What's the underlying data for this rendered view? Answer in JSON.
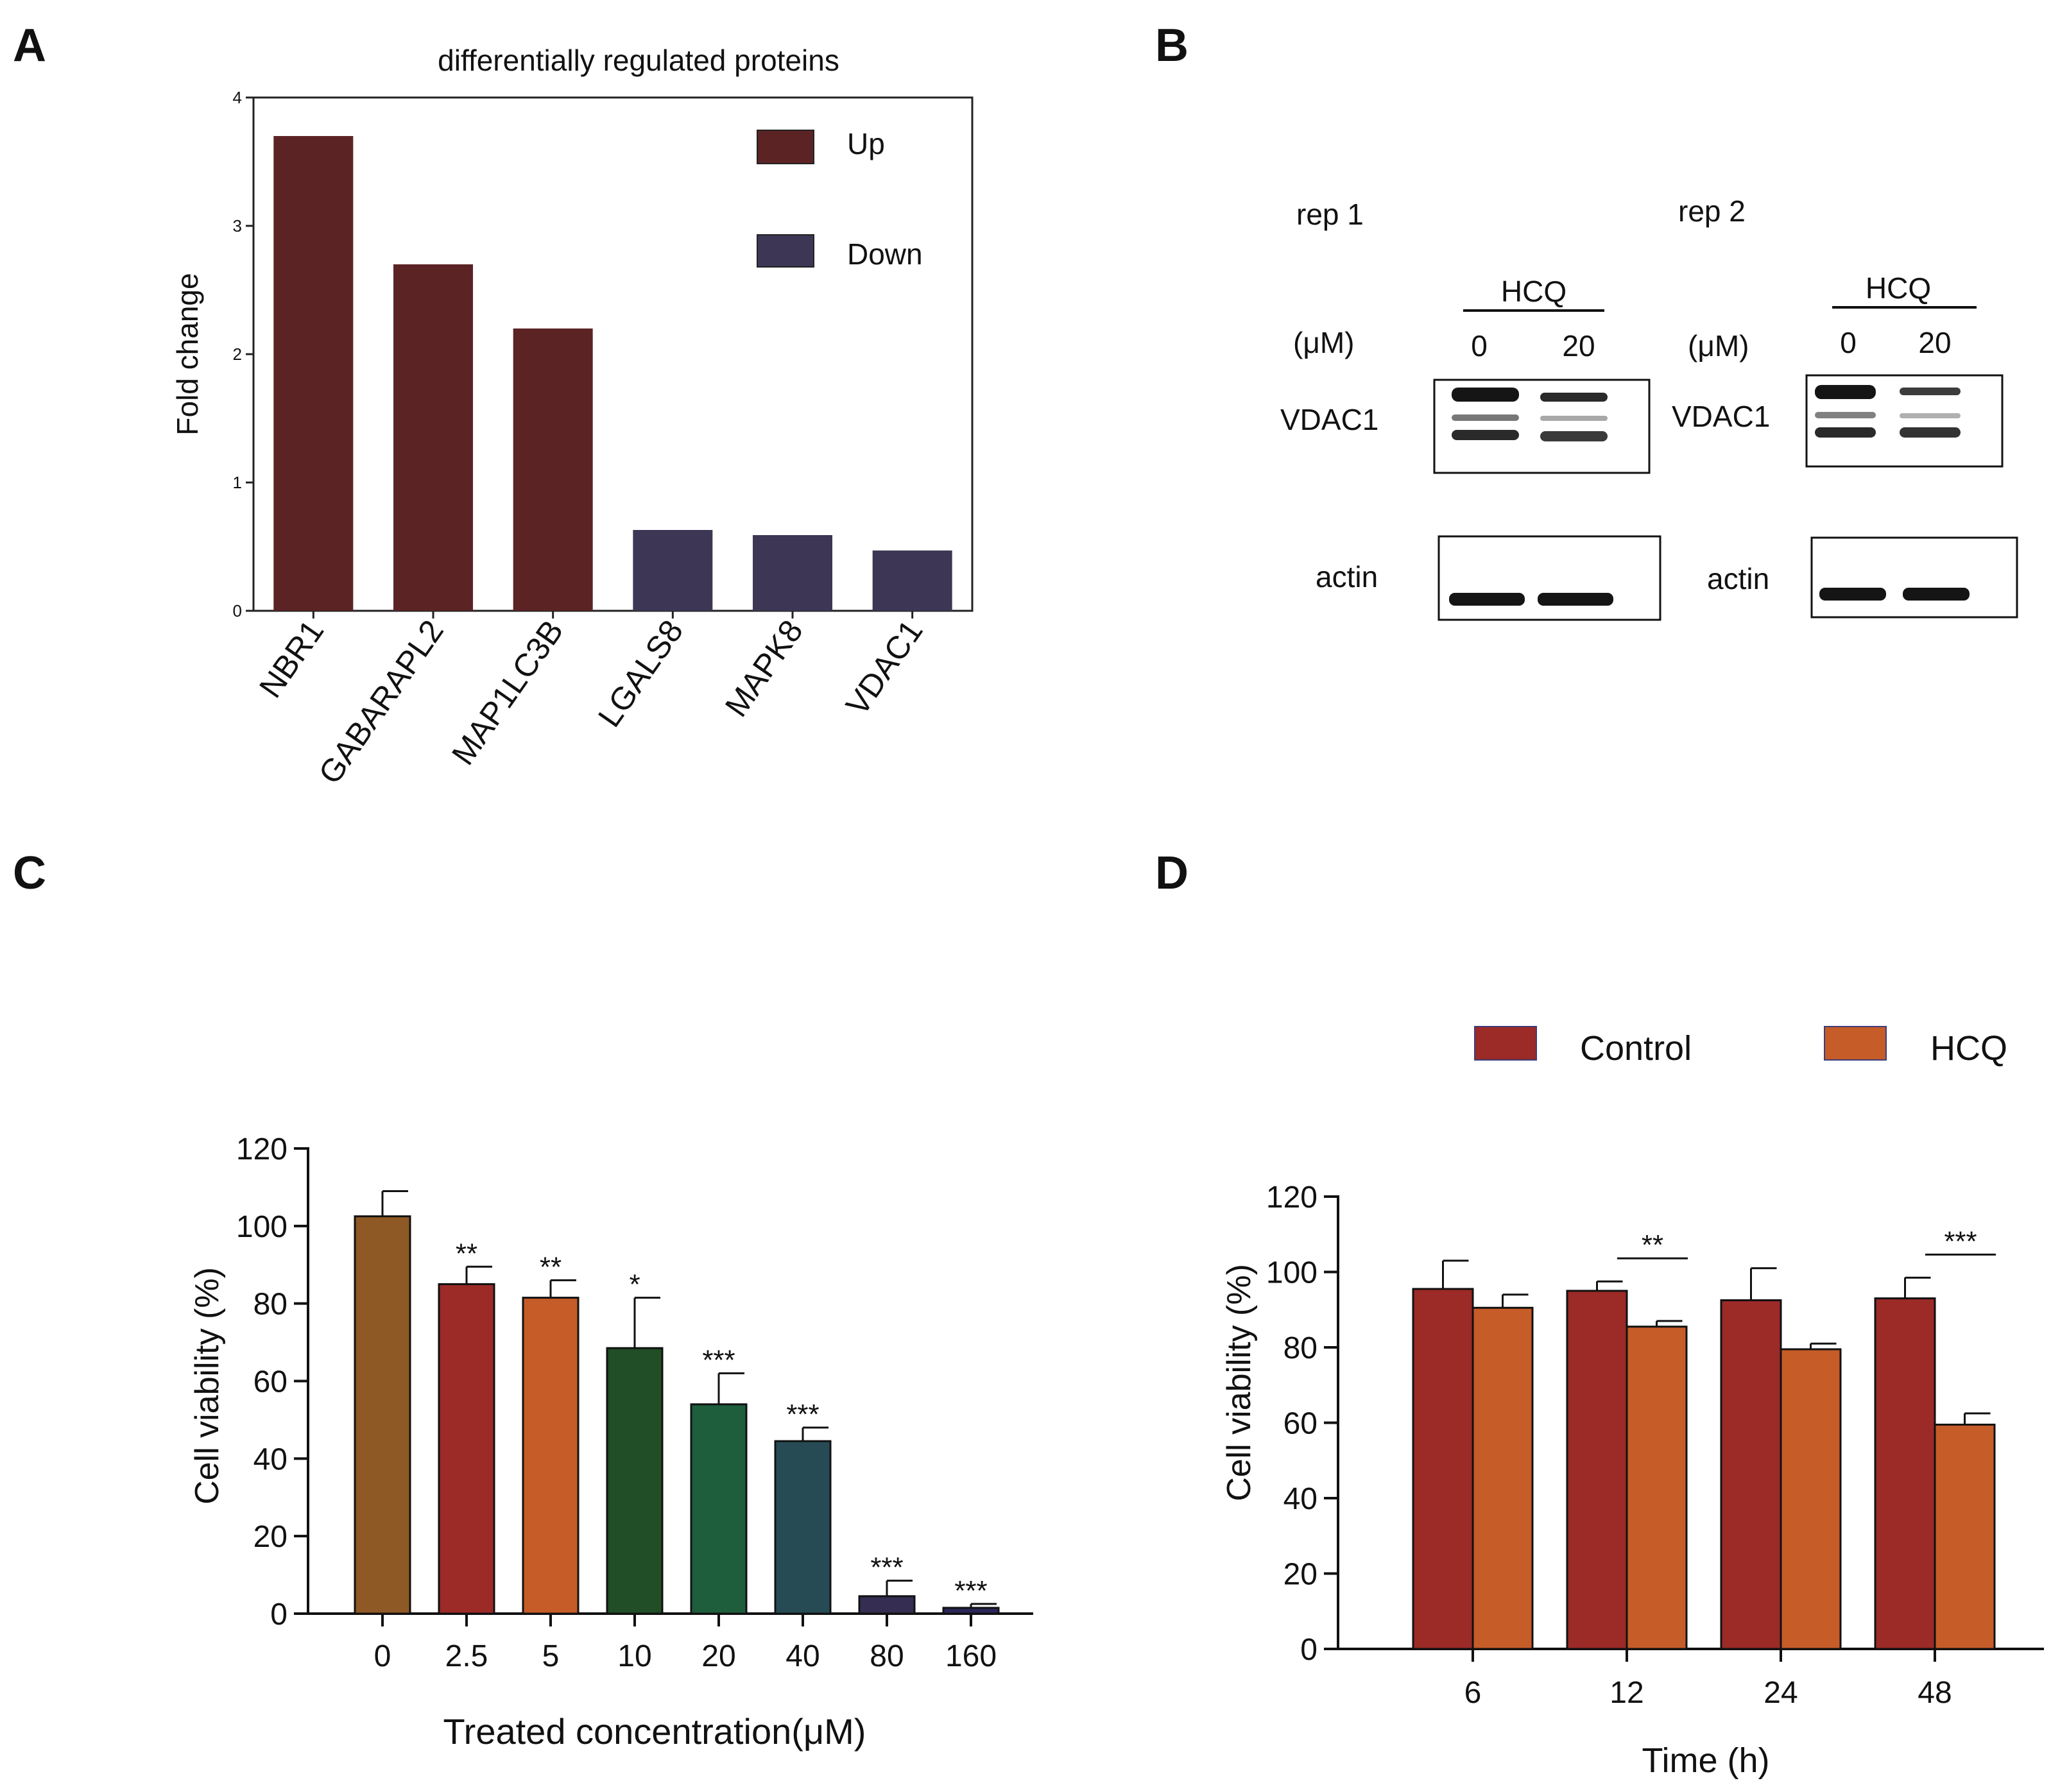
{
  "panels": {
    "a": "A",
    "b": "B",
    "c": "C",
    "d": "D"
  },
  "colors": {
    "up": "#5c2325",
    "down": "#3d3654",
    "control": "#9c2a27",
    "hcq": "#c65c28",
    "c_bars": [
      "#8e5925",
      "#9c2a27",
      "#c65c28",
      "#214d27",
      "#1e5e3c",
      "#274b55",
      "#362d52",
      "#2a2658"
    ]
  },
  "blot": {
    "rep1": "rep 1",
    "rep2": "rep 2",
    "treatment": "HCQ",
    "unit": "(μM)",
    "dose_low": "0",
    "dose_high": "20",
    "protein_target": "VDAC1",
    "protein_loading": "actin"
  },
  "chart_data": [
    {
      "id": "A",
      "type": "bar",
      "title": "differentially regulated proteins",
      "xlabel": "",
      "ylabel": "Fold change",
      "categories": [
        "NBR1",
        "GABARAPL2",
        "MAP1LC3B",
        "LGALS8",
        "MAPK8",
        "VDAC1"
      ],
      "values": [
        3.7,
        2.7,
        2.2,
        0.63,
        0.59,
        0.47
      ],
      "regulation": [
        "up",
        "up",
        "up",
        "down",
        "down",
        "down"
      ],
      "legend": [
        "Up",
        "Down"
      ],
      "legend_position": "top-right",
      "ylim": [
        0,
        4
      ],
      "yticks": [
        "0",
        "1",
        "2",
        "3",
        "4"
      ],
      "grid": false
    },
    {
      "id": "C",
      "type": "bar",
      "title": "",
      "xlabel": "Treated concentration(μM)",
      "ylabel": "Cell viability (%)",
      "categories": [
        "0",
        "2.5",
        "5",
        "10",
        "20",
        "40",
        "80",
        "160"
      ],
      "values": [
        102.5,
        85,
        81.5,
        68.5,
        54,
        44.5,
        4.5,
        1.5
      ],
      "errors": [
        6.5,
        4.5,
        4.5,
        13,
        8,
        3.5,
        4,
        1
      ],
      "significance": [
        "",
        "**",
        "**",
        "*",
        "***",
        "***",
        "***",
        "***"
      ],
      "ylim": [
        0,
        120
      ],
      "yticks": [
        "0",
        "20",
        "40",
        "60",
        "80",
        "100",
        "120"
      ],
      "grid": false
    },
    {
      "id": "D",
      "type": "bar",
      "title": "",
      "xlabel": "Time (h)",
      "ylabel": "Cell viability (%)",
      "categories": [
        "6",
        "12",
        "24",
        "48"
      ],
      "series": [
        {
          "name": "Control",
          "values": [
            95.5,
            95,
            92.5,
            93
          ],
          "errors": [
            7.5,
            2.5,
            8.5,
            5.5
          ]
        },
        {
          "name": "HCQ",
          "values": [
            90.5,
            85.5,
            79.5,
            59.5
          ],
          "errors": [
            3.5,
            1.5,
            1.5,
            3
          ]
        }
      ],
      "significance": [
        "",
        "**",
        "",
        "***"
      ],
      "legend_position": "top",
      "ylim": [
        0,
        120
      ],
      "yticks": [
        "0",
        "20",
        "40",
        "60",
        "80",
        "100",
        "120"
      ],
      "grid": false
    }
  ]
}
